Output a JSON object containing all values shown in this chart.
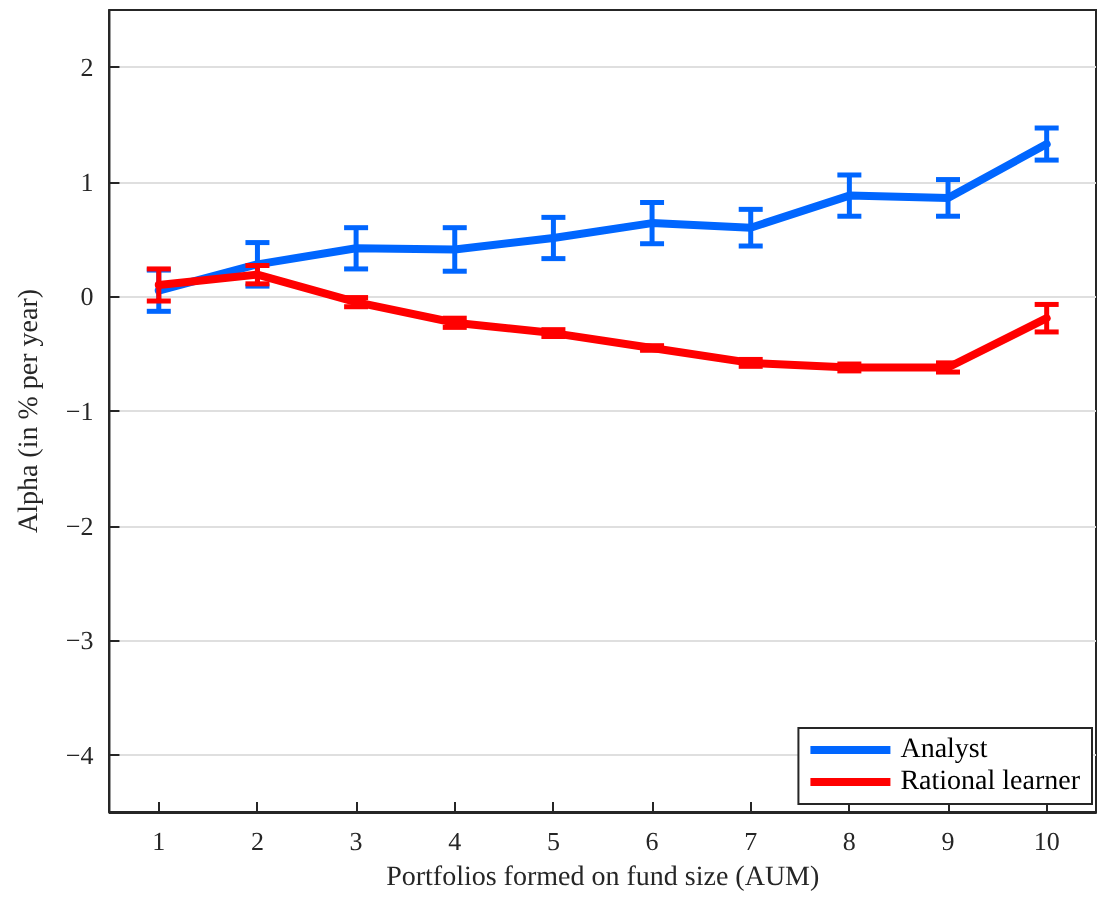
{
  "chart_data": {
    "type": "line",
    "xlabel": "Portfolios formed on fund size (AUM)",
    "ylabel": "Alpha (in % per year)",
    "x": [
      1,
      2,
      3,
      4,
      5,
      6,
      7,
      8,
      9,
      10
    ],
    "xlim": [
      0.5,
      10.5
    ],
    "xticks": [
      1,
      2,
      3,
      4,
      5,
      6,
      7,
      8,
      9,
      10
    ],
    "ylim": [
      -4.5,
      2.5
    ],
    "yticks": [
      -4,
      -3,
      -2,
      -1,
      0,
      1,
      2
    ],
    "grid": "y",
    "legend": "bottom right",
    "marker": "none",
    "line_style": "solid",
    "series": [
      {
        "name": "Analyst",
        "color": "#0066ff",
        "values": [
          0.05,
          0.28,
          0.42,
          0.41,
          0.51,
          0.64,
          0.6,
          0.88,
          0.86,
          1.33
        ],
        "errors": [
          0.18,
          0.19,
          0.18,
          0.19,
          0.18,
          0.18,
          0.16,
          0.18,
          0.16,
          0.14
        ]
      },
      {
        "name": "Rational learner",
        "color": "#ff0000",
        "values": [
          0.1,
          0.19,
          -0.05,
          -0.23,
          -0.32,
          -0.45,
          -0.58,
          -0.62,
          -0.62,
          -0.19
        ],
        "errors": [
          0.14,
          0.08,
          0.04,
          0.04,
          0.03,
          0.02,
          0.03,
          0.03,
          0.04,
          0.12
        ]
      }
    ]
  }
}
